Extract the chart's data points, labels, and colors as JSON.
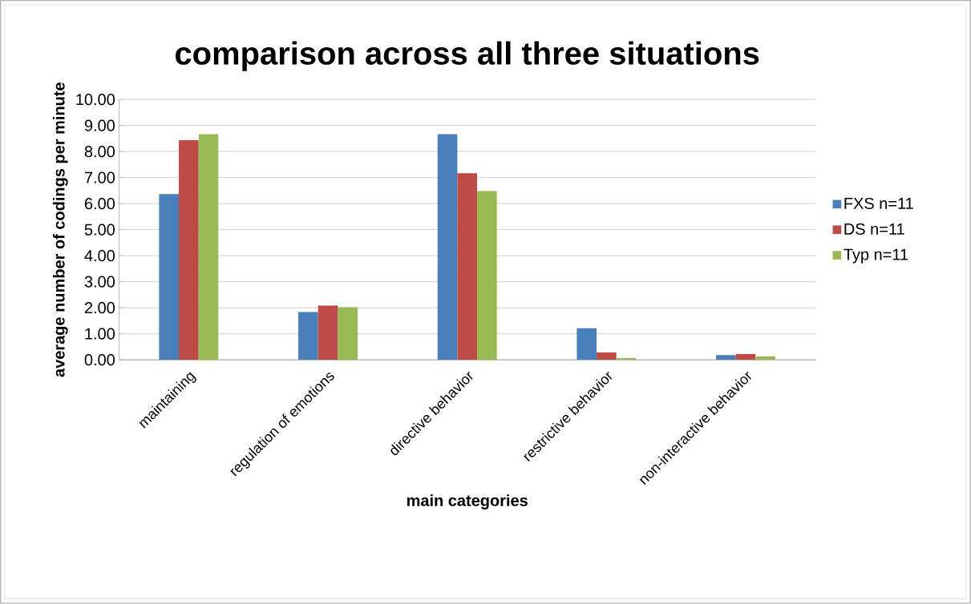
{
  "chart_data": {
    "type": "bar",
    "title": "comparison across all three situations",
    "xlabel": "main categories",
    "ylabel": "average number of codings per minute",
    "categories": [
      "maintaining",
      "regulation of emotions",
      "directive behavior",
      "restrictive behavior",
      "non-interactive behavior"
    ],
    "series": [
      {
        "name": "FXS n=11",
        "color": "#4a7ebb",
        "values": [
          6.37,
          1.84,
          8.67,
          1.21,
          0.18
        ]
      },
      {
        "name": "DS n=11",
        "color": "#be4b48",
        "values": [
          8.44,
          2.08,
          7.17,
          0.28,
          0.22
        ]
      },
      {
        "name": "Typ n=11",
        "color": "#98b954",
        "values": [
          8.67,
          2.02,
          6.48,
          0.07,
          0.13
        ]
      }
    ],
    "ylim": [
      0,
      10
    ],
    "yticks": [
      {
        "value": 0,
        "label": "0.00"
      },
      {
        "value": 1,
        "label": "1.00"
      },
      {
        "value": 2,
        "label": "2.00"
      },
      {
        "value": 3,
        "label": "3.00"
      },
      {
        "value": 4,
        "label": "4.00"
      },
      {
        "value": 5,
        "label": "5.00"
      },
      {
        "value": 6,
        "label": "6.00"
      },
      {
        "value": 7,
        "label": "7.00"
      },
      {
        "value": 8,
        "label": "8.00"
      },
      {
        "value": 9,
        "label": "9.00"
      },
      {
        "value": 10,
        "label": "10.00"
      }
    ],
    "grid": "y",
    "legend": "right"
  }
}
